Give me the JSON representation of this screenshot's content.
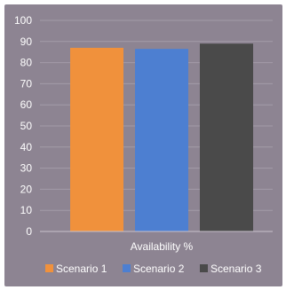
{
  "chart_data": {
    "type": "bar",
    "categories": [
      "Availability %"
    ],
    "series": [
      {
        "name": "Scenario 1",
        "values": [
          87
        ],
        "color": "#f0913c"
      },
      {
        "name": "Scenario 2",
        "values": [
          86.5
        ],
        "color": "#4d7fd1"
      },
      {
        "name": "Scenario 3",
        "values": [
          89
        ],
        "color": "#4a4a4a"
      }
    ],
    "ylim": [
      0,
      100
    ],
    "yticks": [
      0,
      10,
      20,
      30,
      40,
      50,
      60,
      70,
      80,
      90,
      100
    ],
    "xlabel": "Availability %",
    "grid": true,
    "legend": "bottom",
    "background": "#8d8492",
    "grid_color": "#a39ba8",
    "legend_labels": [
      "Scenario 1",
      "Scenario 2",
      "Scenario 3"
    ]
  }
}
